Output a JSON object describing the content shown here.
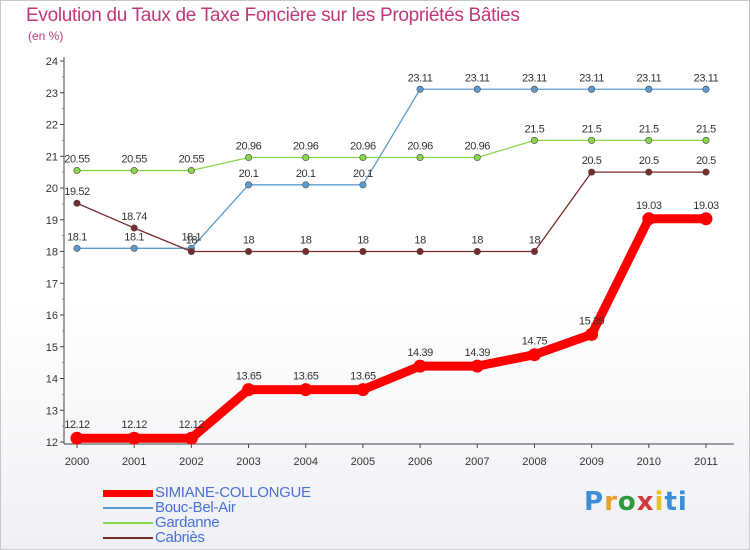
{
  "chart_data": {
    "type": "line",
    "title": "Evolution du Taux de Taxe Foncière sur les Propriétés Bâties",
    "ylabel": "(en %)",
    "xlabel": "",
    "x": [
      "2000",
      "2001",
      "2002",
      "2003",
      "2004",
      "2005",
      "2006",
      "2007",
      "2008",
      "2009",
      "2010",
      "2011"
    ],
    "ylim": [
      12,
      24
    ],
    "yticks": [
      "12",
      "13",
      "14",
      "15",
      "16",
      "17",
      "18",
      "19",
      "20",
      "21",
      "22",
      "23",
      "24"
    ],
    "series": [
      {
        "name": "SIMIANE-COLLONGUE",
        "color": "#ff0000",
        "values": [
          12.12,
          12.12,
          12.12,
          13.65,
          13.65,
          13.65,
          14.39,
          14.39,
          14.75,
          15.39,
          19.03,
          19.03
        ],
        "labels": [
          "12.12",
          "12.12",
          "12.12",
          "13.65",
          "13.65",
          "13.65",
          "14.39",
          "14.39",
          "14.75",
          "15.39",
          "19.03",
          "19.03"
        ]
      },
      {
        "name": "Bouc-Bel-Air",
        "color": "#5b9bd0",
        "values": [
          18.1,
          18.1,
          18.1,
          20.1,
          20.1,
          20.1,
          23.11,
          23.11,
          23.11,
          23.11,
          23.11,
          23.11
        ],
        "labels": [
          "18.1",
          "18.1",
          "18.1",
          "20.1",
          "20.1",
          "20.1",
          "23.11",
          "23.11",
          "23.11",
          "23.11",
          "23.11",
          "23.11"
        ]
      },
      {
        "name": "Gardanne",
        "color": "#88d64a",
        "values": [
          20.55,
          20.55,
          20.55,
          20.96,
          20.96,
          20.96,
          20.96,
          20.96,
          21.5,
          21.5,
          21.5,
          21.5
        ],
        "labels": [
          "20.55",
          "20.55",
          "20.55",
          "20.96",
          "20.96",
          "20.96",
          "20.96",
          "20.96",
          "21.5",
          "21.5",
          "21.5",
          "21.5"
        ]
      },
      {
        "name": "Cabriès",
        "color": "#7a2a2a",
        "values": [
          19.52,
          18.74,
          18,
          18,
          18,
          18,
          18,
          18,
          18,
          20.5,
          20.5,
          20.5
        ],
        "labels": [
          "19.52",
          "18.74",
          "18",
          "18",
          "18",
          "18",
          "18",
          "18",
          "18",
          "20.5",
          "20.5",
          "20.5"
        ]
      }
    ],
    "legend": "bottom-left",
    "grid": false
  },
  "logo": {
    "letters": [
      "P",
      "r",
      "o",
      "x",
      "i",
      "ti"
    ]
  }
}
